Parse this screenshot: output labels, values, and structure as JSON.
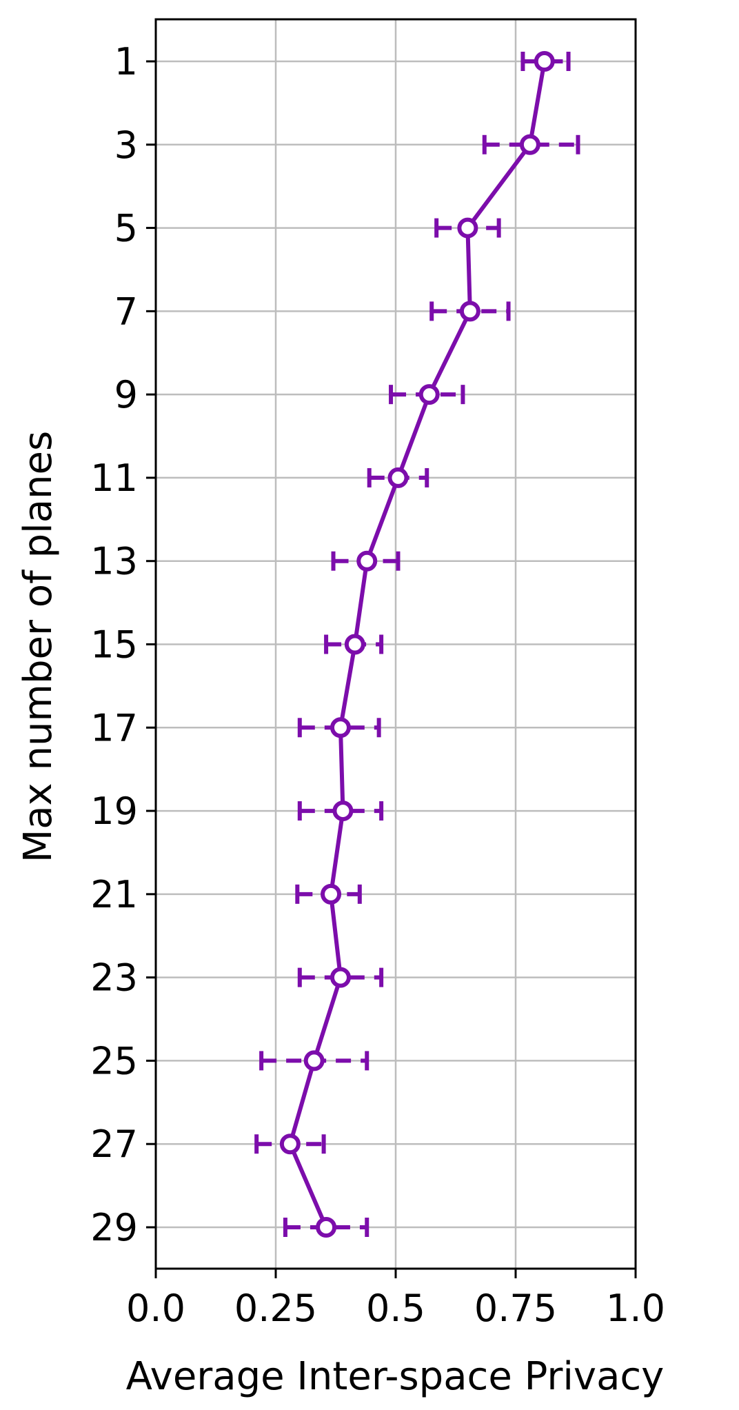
{
  "chart_data": {
    "type": "line",
    "orientation": "horizontal",
    "title": "",
    "xlabel": "Average Inter-space Privacy",
    "ylabel": "Max number of planes",
    "xlim": [
      0.0,
      1.0
    ],
    "ylim": [
      30,
      0
    ],
    "xticks": [
      0.0,
      0.25,
      0.5,
      0.75,
      1.0
    ],
    "xtick_labels": [
      "0.0",
      "0.25",
      "0.5",
      "0.75",
      "1.0"
    ],
    "yticks": [
      1,
      3,
      5,
      7,
      9,
      11,
      13,
      15,
      17,
      19,
      21,
      23,
      25,
      27,
      29
    ],
    "ytick_labels": [
      "1",
      "3",
      "5",
      "7",
      "9",
      "11",
      "13",
      "15",
      "17",
      "19",
      "21",
      "23",
      "25",
      "27",
      "29"
    ],
    "grid": true,
    "color": "#7c0dab",
    "series": [
      {
        "name": "Average Inter-space Privacy",
        "y": [
          1,
          3,
          5,
          7,
          9,
          11,
          13,
          15,
          17,
          19,
          21,
          23,
          25,
          27,
          29
        ],
        "x": [
          0.81,
          0.78,
          0.65,
          0.655,
          0.57,
          0.505,
          0.44,
          0.415,
          0.385,
          0.39,
          0.365,
          0.385,
          0.33,
          0.28,
          0.355
        ],
        "x_err_low": [
          0.765,
          0.685,
          0.585,
          0.575,
          0.49,
          0.445,
          0.37,
          0.355,
          0.3,
          0.3,
          0.295,
          0.3,
          0.22,
          0.21,
          0.27
        ],
        "x_err_high": [
          0.86,
          0.88,
          0.715,
          0.735,
          0.64,
          0.565,
          0.505,
          0.47,
          0.465,
          0.47,
          0.425,
          0.47,
          0.44,
          0.35,
          0.44
        ]
      }
    ]
  }
}
